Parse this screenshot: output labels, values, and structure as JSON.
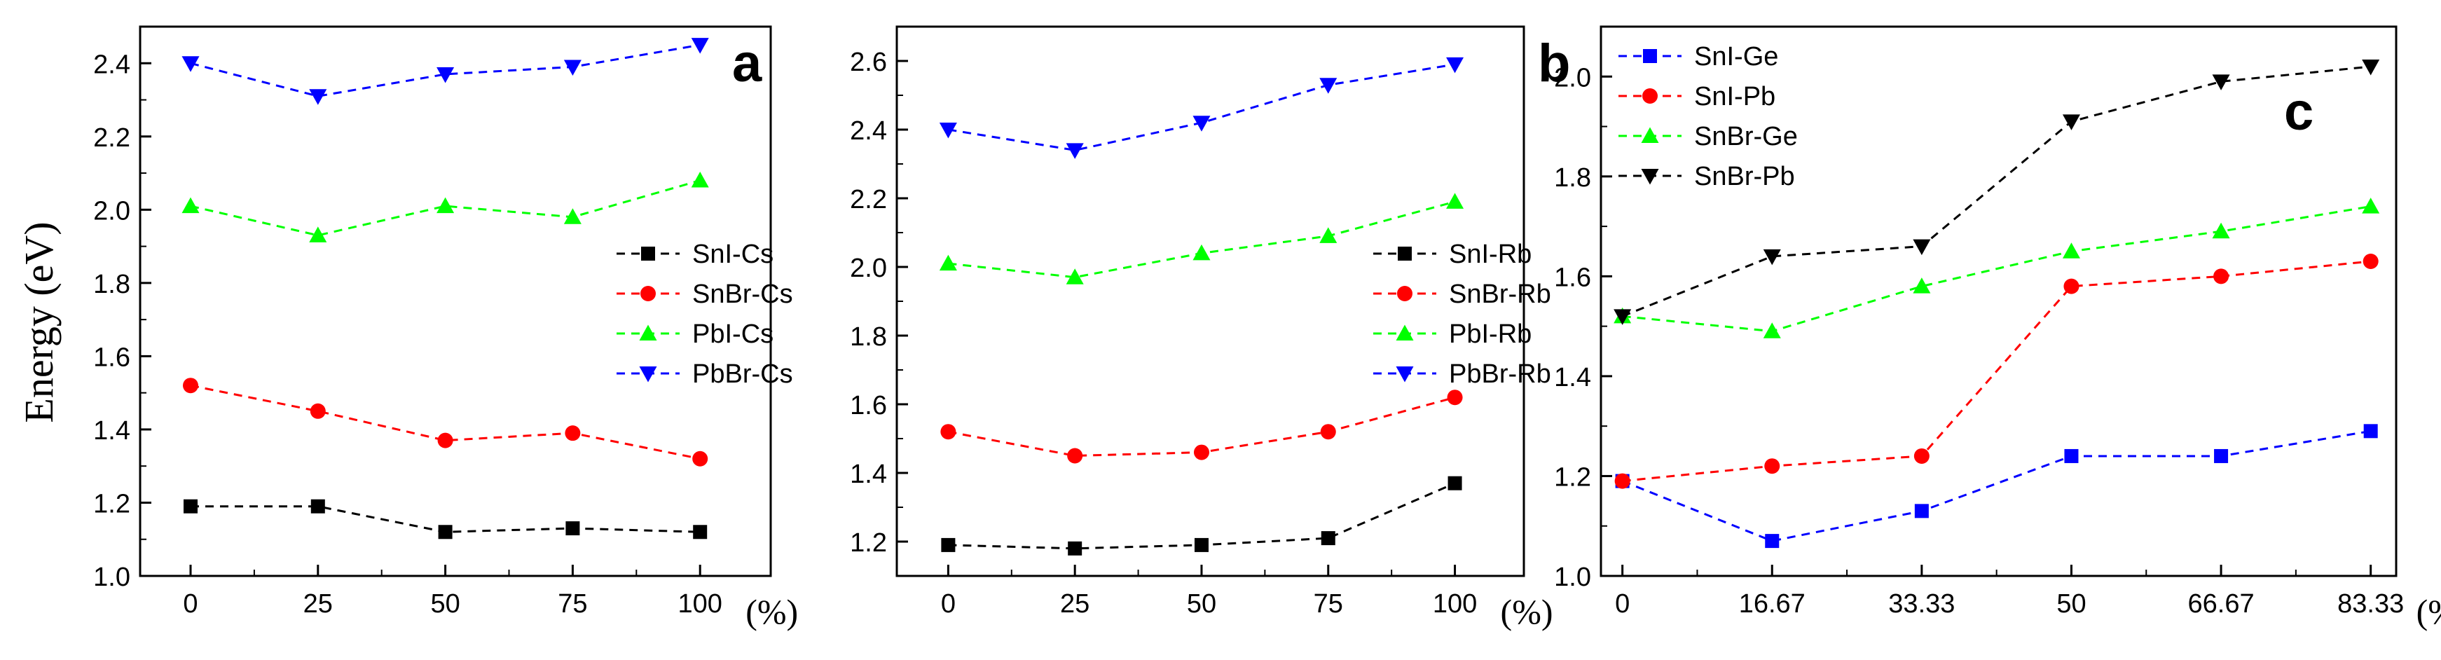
{
  "figure_ylabel": "Energy (eV)",
  "chart_data": [
    {
      "type": "line",
      "panel_label": "a",
      "xlabel": "(%)",
      "ylabel": "Energy (eV)",
      "categories": [
        "0",
        "25",
        "50",
        "75",
        "100"
      ],
      "ylim": [
        1.0,
        2.5
      ],
      "yticks": [
        "1.0",
        "1.2",
        "1.4",
        "1.6",
        "1.8",
        "2.0",
        "2.2",
        "2.4"
      ],
      "legend_position": "center-right",
      "series": [
        {
          "name": "SnI-Cs",
          "color": "#000000",
          "marker": "square",
          "values": [
            1.19,
            1.19,
            1.12,
            1.13,
            1.12
          ]
        },
        {
          "name": "SnBr-Cs",
          "color": "#ff0000",
          "marker": "circle",
          "values": [
            1.52,
            1.45,
            1.37,
            1.39,
            1.32
          ]
        },
        {
          "name": "PbI-Cs",
          "color": "#00ff00",
          "marker": "triangle-up",
          "values": [
            2.01,
            1.93,
            2.01,
            1.98,
            2.08
          ]
        },
        {
          "name": "PbBr-Cs",
          "color": "#0000ff",
          "marker": "triangle-down",
          "values": [
            2.4,
            2.31,
            2.37,
            2.39,
            2.45
          ]
        }
      ]
    },
    {
      "type": "line",
      "panel_label": "b",
      "xlabel": "(%)",
      "categories": [
        "0",
        "25",
        "50",
        "75",
        "100"
      ],
      "ylim": [
        1.1,
        2.7
      ],
      "yticks": [
        "1.2",
        "1.4",
        "1.6",
        "1.8",
        "2.0",
        "2.2",
        "2.4",
        "2.6"
      ],
      "legend_position": "center-right",
      "series": [
        {
          "name": "SnI-Rb",
          "color": "#000000",
          "marker": "square",
          "values": [
            1.19,
            1.18,
            1.19,
            1.21,
            1.37
          ]
        },
        {
          "name": "SnBr-Rb",
          "color": "#ff0000",
          "marker": "circle",
          "values": [
            1.52,
            1.45,
            1.46,
            1.52,
            1.62
          ]
        },
        {
          "name": "PbI-Rb",
          "color": "#00ff00",
          "marker": "triangle-up",
          "values": [
            2.01,
            1.97,
            2.04,
            2.09,
            2.19
          ]
        },
        {
          "name": "PbBr-Rb",
          "color": "#0000ff",
          "marker": "triangle-down",
          "values": [
            2.4,
            2.34,
            2.42,
            2.53,
            2.59
          ]
        }
      ]
    },
    {
      "type": "line",
      "panel_label": "c",
      "xlabel": "(%)",
      "categories": [
        "0",
        "16.67",
        "33.33",
        "50",
        "66.67",
        "83.33"
      ],
      "ylim": [
        1.0,
        2.1
      ],
      "yticks": [
        "1.0",
        "1.2",
        "1.4",
        "1.6",
        "1.8",
        "2.0"
      ],
      "legend_position": "top-left",
      "series": [
        {
          "name": "SnI-Ge",
          "color": "#0000ff",
          "marker": "square",
          "values": [
            1.19,
            1.07,
            1.13,
            1.24,
            1.24,
            1.29
          ]
        },
        {
          "name": "SnI-Pb",
          "color": "#ff0000",
          "marker": "circle",
          "values": [
            1.19,
            1.22,
            1.24,
            1.58,
            1.6,
            1.63
          ]
        },
        {
          "name": "SnBr-Ge",
          "color": "#00ff00",
          "marker": "triangle-up",
          "values": [
            1.52,
            1.49,
            1.58,
            1.65,
            1.69,
            1.74
          ]
        },
        {
          "name": "SnBr-Pb",
          "color": "#000000",
          "marker": "triangle-down",
          "values": [
            1.52,
            1.64,
            1.66,
            1.91,
            1.99,
            2.02
          ]
        }
      ]
    }
  ]
}
